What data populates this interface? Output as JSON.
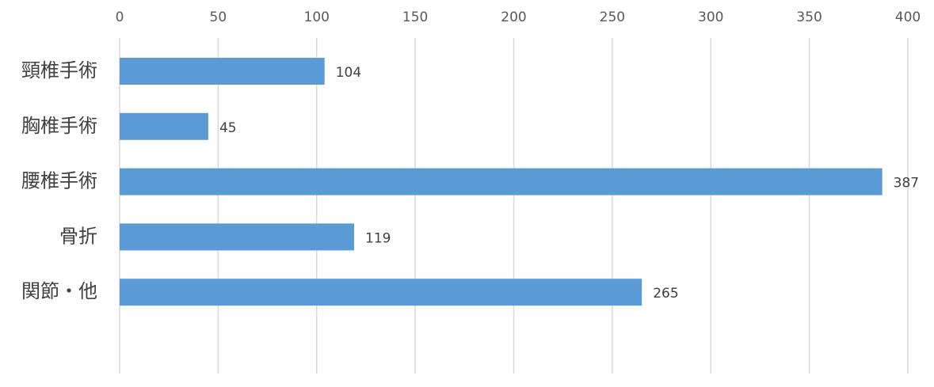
{
  "chart_data": {
    "type": "bar",
    "orientation": "horizontal",
    "axis_position": "top",
    "categories": [
      "頸椎手術",
      "胸椎手術",
      "腰椎手術",
      "骨折",
      "関節・他"
    ],
    "values": [
      104,
      45,
      387,
      119,
      265
    ],
    "color": "#5b9bd5",
    "xlim": [
      0,
      400
    ],
    "xticks": [
      0,
      50,
      100,
      150,
      200,
      250,
      300,
      350,
      400
    ],
    "grid": true
  }
}
